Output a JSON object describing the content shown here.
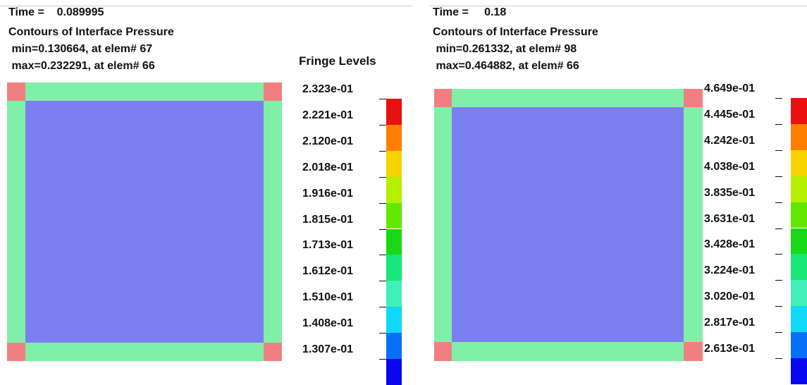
{
  "colors": {
    "interior": "#7b7ff0",
    "border": "#80f0a8",
    "corner": "#f08080"
  },
  "left": {
    "time_label": "Time =",
    "time_value": "0.089995",
    "title": "Contours of Interface Pressure",
    "min_line": " min=0.130664, at elem# 67",
    "max_line": " max=0.232291, at elem# 66",
    "fringe_title": "Fringe Levels",
    "levels": [
      "2.323e-01",
      "2.221e-01",
      "2.120e-01",
      "2.018e-01",
      "1.916e-01",
      "1.815e-01",
      "1.713e-01",
      "1.612e-01",
      "1.510e-01",
      "1.408e-01",
      "1.307e-01"
    ],
    "colorbar": [
      "#e81010",
      "#ff7e00",
      "#f7d400",
      "#b4f000",
      "#62e800",
      "#18d818",
      "#18e878",
      "#40f0b8",
      "#10d8f8",
      "#0870f8",
      "#0808f0"
    ]
  },
  "right": {
    "time_label": "Time =",
    "time_value": "0.18",
    "title": "Contours of Interface Pressure",
    "min_line": " min=0.261332, at elem# 98",
    "max_line": " max=0.464882, at elem# 66",
    "levels": [
      "4.649e-01",
      "4.445e-01",
      "4.242e-01",
      "4.038e-01",
      "3.835e-01",
      "3.631e-01",
      "3.428e-01",
      "3.224e-01",
      "3.020e-01",
      "2.817e-01",
      "2.613e-01"
    ],
    "colorbar": [
      "#e81010",
      "#ff7e00",
      "#f7d400",
      "#b4f000",
      "#62e800",
      "#18d818",
      "#18e878",
      "#40f0b8",
      "#10d8f8",
      "#0870f8",
      "#0808f0"
    ]
  }
}
